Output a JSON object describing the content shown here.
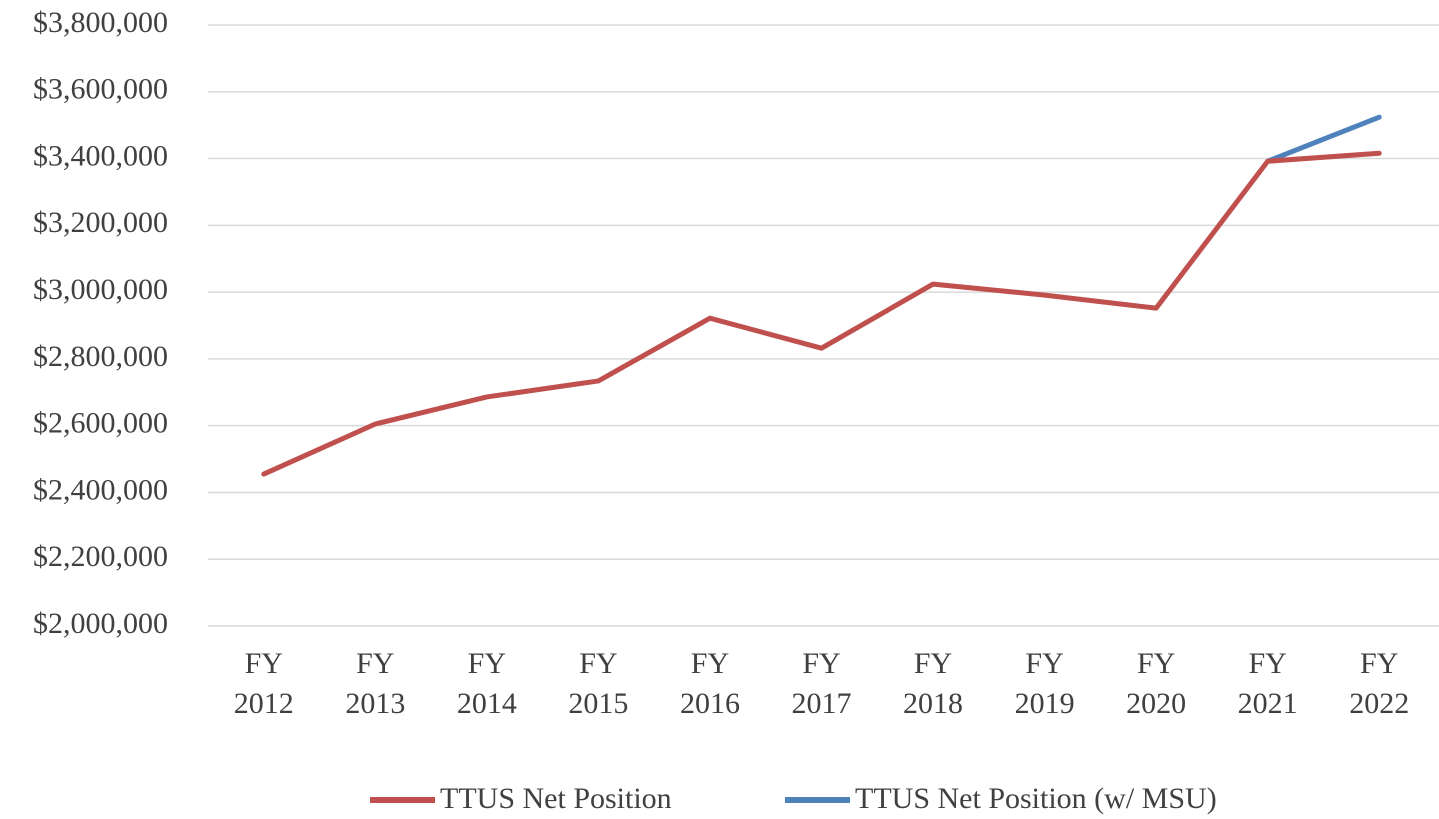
{
  "chart_data": {
    "type": "line",
    "categories": [
      "FY 2012",
      "FY 2013",
      "FY 2014",
      "FY 2015",
      "FY 2016",
      "FY 2017",
      "FY 2018",
      "FY 2019",
      "FY 2020",
      "FY 2021",
      "FY 2022"
    ],
    "series": [
      {
        "name": "TTUS Net Position",
        "color": "#c0504d",
        "values": [
          2455000,
          2605000,
          2686000,
          2734000,
          2922000,
          2832000,
          3024000,
          2991000,
          2952000,
          3392000,
          3416000
        ]
      },
      {
        "name": "TTUS Net Position (w/ MSU)",
        "color": "#4f81bd",
        "values": [
          null,
          null,
          null,
          null,
          null,
          null,
          null,
          null,
          null,
          3392000,
          3524000
        ]
      }
    ],
    "ylim": [
      2000000,
      3800000
    ],
    "yticks": [
      {
        "value": 2000000,
        "label": "$2,000,000"
      },
      {
        "value": 2200000,
        "label": "$2,200,000"
      },
      {
        "value": 2400000,
        "label": "$2,400,000"
      },
      {
        "value": 2600000,
        "label": "$2,600,000"
      },
      {
        "value": 2800000,
        "label": "$2,800,000"
      },
      {
        "value": 3000000,
        "label": "$3,000,000"
      },
      {
        "value": 3200000,
        "label": "$3,200,000"
      },
      {
        "value": 3400000,
        "label": "$3,400,000"
      },
      {
        "value": 3600000,
        "label": "$3,600,000"
      },
      {
        "value": 3800000,
        "label": "$3,800,000"
      }
    ],
    "grid": true,
    "legend": "bottom"
  }
}
